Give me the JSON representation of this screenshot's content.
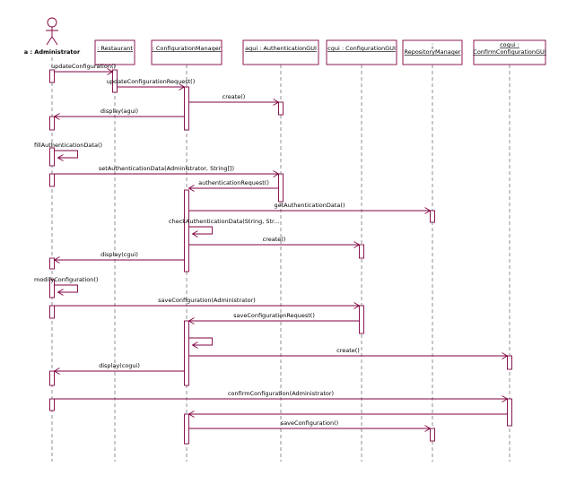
{
  "participants": [
    {
      "lines": [
        "a : Administrator"
      ]
    },
    {
      "lines": [
        ": Restaurant"
      ]
    },
    {
      "lines": [
        ": ConfigurationManager"
      ]
    },
    {
      "lines": [
        "agui : AuthenticationGUI"
      ]
    },
    {
      "lines": [
        "cgui : ConfigurationGUI"
      ]
    },
    {
      "lines": [
        ":",
        "RepositoryManager"
      ]
    },
    {
      "lines": [
        "cogui :",
        "ConfirmConfigurationGUI"
      ]
    }
  ],
  "messages": [
    {
      "label": "updateConfiguration()"
    },
    {
      "label": "updateConfigurationRequest()"
    },
    {
      "label": "create()"
    },
    {
      "label": "display(agui)"
    },
    {
      "label": "fillAuthenticationData()"
    },
    {
      "label": "setAuthenticationData(Administrator, String[])"
    },
    {
      "label": "authenticationRequest()"
    },
    {
      "label": "getAuthenticationData()"
    },
    {
      "label": "checkAuthenticationData(String, Str..."
    },
    {
      "label": "create()"
    },
    {
      "label": "display(cgui)"
    },
    {
      "label": "modifyConfiguration()"
    },
    {
      "label": "saveConfiguration(Administrator)"
    },
    {
      "label": "saveConfigurationRequest()"
    },
    {
      "label": "create()"
    },
    {
      "label": "display(cogui)"
    },
    {
      "label": "confirmConfiguration(Administrator)"
    },
    {
      "label": "saveConfiguration()"
    }
  ]
}
